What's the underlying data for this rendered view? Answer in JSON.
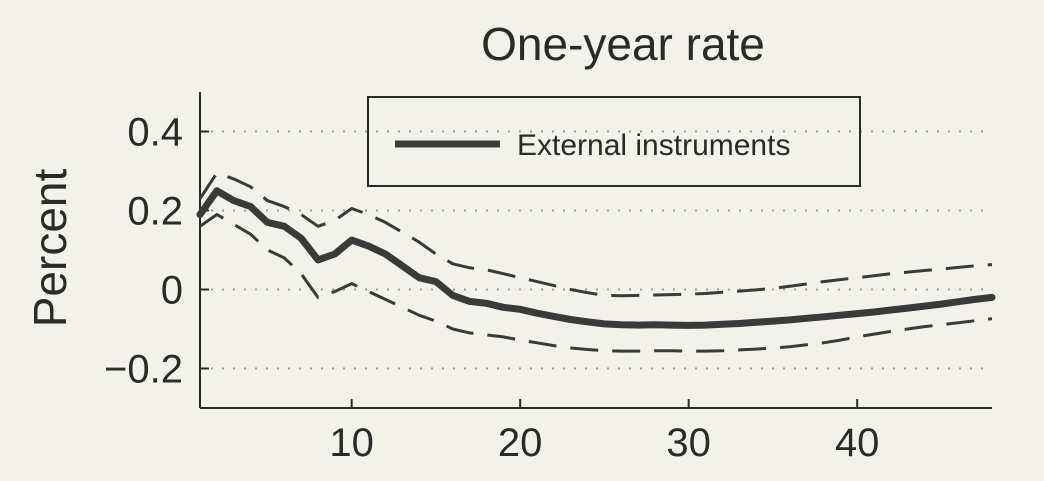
{
  "chart_data": {
    "type": "line",
    "title": "One-year rate",
    "xlabel": "",
    "ylabel": "Percent",
    "xlim": [
      1,
      48
    ],
    "ylim": [
      -0.3,
      0.5
    ],
    "xticks": [
      10,
      20,
      30,
      40
    ],
    "xtick_labels": [
      "10",
      "20",
      "30",
      "40"
    ],
    "yticks": [
      0.4,
      0.2,
      0,
      -0.2
    ],
    "ytick_labels": [
      "0.4",
      "0.2",
      "0",
      "−0.2"
    ],
    "grid": "horizontal-dotted",
    "legend": {
      "position": "top-center",
      "entries": [
        "External instruments"
      ]
    },
    "series": [
      {
        "name": "External instruments",
        "style": "solid-thick",
        "color": "#3a3a3a",
        "x": [
          1,
          2,
          3,
          4,
          5,
          6,
          7,
          8,
          9,
          10,
          11,
          12,
          13,
          14,
          15,
          16,
          17,
          18,
          19,
          20,
          21,
          22,
          23,
          24,
          25,
          26,
          27,
          28,
          29,
          30,
          31,
          32,
          33,
          34,
          35,
          36,
          37,
          38,
          39,
          40,
          41,
          42,
          43,
          44,
          45,
          46,
          47,
          48
        ],
        "y": [
          0.19,
          0.25,
          0.225,
          0.21,
          0.17,
          0.16,
          0.13,
          0.075,
          0.09,
          0.125,
          0.11,
          0.09,
          0.06,
          0.03,
          0.02,
          -0.015,
          -0.03,
          -0.035,
          -0.045,
          -0.05,
          -0.06,
          -0.068,
          -0.076,
          -0.082,
          -0.087,
          -0.089,
          -0.09,
          -0.089,
          -0.09,
          -0.091,
          -0.09,
          -0.088,
          -0.086,
          -0.083,
          -0.08,
          -0.077,
          -0.073,
          -0.069,
          -0.065,
          -0.061,
          -0.057,
          -0.052,
          -0.047,
          -0.042,
          -0.037,
          -0.031,
          -0.025,
          -0.02
        ]
      },
      {
        "name": "",
        "style": "dashed-upper-band",
        "color": "#3a3a3a",
        "x": [
          1,
          2,
          3,
          4,
          5,
          6,
          7,
          8,
          9,
          10,
          11,
          12,
          13,
          14,
          15,
          16,
          17,
          18,
          19,
          20,
          21,
          22,
          23,
          24,
          25,
          26,
          27,
          28,
          29,
          30,
          31,
          32,
          33,
          34,
          35,
          36,
          37,
          38,
          39,
          40,
          41,
          42,
          43,
          44,
          45,
          46,
          47,
          48
        ],
        "y": [
          0.23,
          0.295,
          0.28,
          0.26,
          0.225,
          0.21,
          0.19,
          0.16,
          0.175,
          0.205,
          0.19,
          0.17,
          0.145,
          0.12,
          0.09,
          0.065,
          0.055,
          0.05,
          0.04,
          0.03,
          0.02,
          0.01,
          0.0,
          -0.008,
          -0.015,
          -0.016,
          -0.015,
          -0.014,
          -0.013,
          -0.012,
          -0.01,
          -0.007,
          -0.004,
          -0.001,
          0.003,
          0.008,
          0.014,
          0.02,
          0.025,
          0.03,
          0.035,
          0.04,
          0.044,
          0.048,
          0.052,
          0.056,
          0.06,
          0.063
        ]
      },
      {
        "name": "",
        "style": "dashed-lower-band",
        "color": "#3a3a3a",
        "x": [
          1,
          2,
          3,
          4,
          5,
          6,
          7,
          8,
          9,
          10,
          11,
          12,
          13,
          14,
          15,
          16,
          17,
          18,
          19,
          20,
          21,
          22,
          23,
          24,
          25,
          26,
          27,
          28,
          29,
          30,
          31,
          32,
          33,
          34,
          35,
          36,
          37,
          38,
          39,
          40,
          41,
          42,
          43,
          44,
          45,
          46,
          47,
          48
        ],
        "y": [
          0.16,
          0.19,
          0.165,
          0.14,
          0.1,
          0.08,
          0.04,
          -0.02,
          -0.005,
          0.015,
          -0.005,
          -0.025,
          -0.045,
          -0.065,
          -0.08,
          -0.1,
          -0.11,
          -0.115,
          -0.12,
          -0.128,
          -0.135,
          -0.142,
          -0.148,
          -0.152,
          -0.155,
          -0.156,
          -0.156,
          -0.155,
          -0.155,
          -0.156,
          -0.156,
          -0.155,
          -0.153,
          -0.151,
          -0.148,
          -0.145,
          -0.14,
          -0.135,
          -0.128,
          -0.12,
          -0.113,
          -0.106,
          -0.1,
          -0.094,
          -0.089,
          -0.084,
          -0.079,
          -0.074
        ]
      }
    ]
  }
}
